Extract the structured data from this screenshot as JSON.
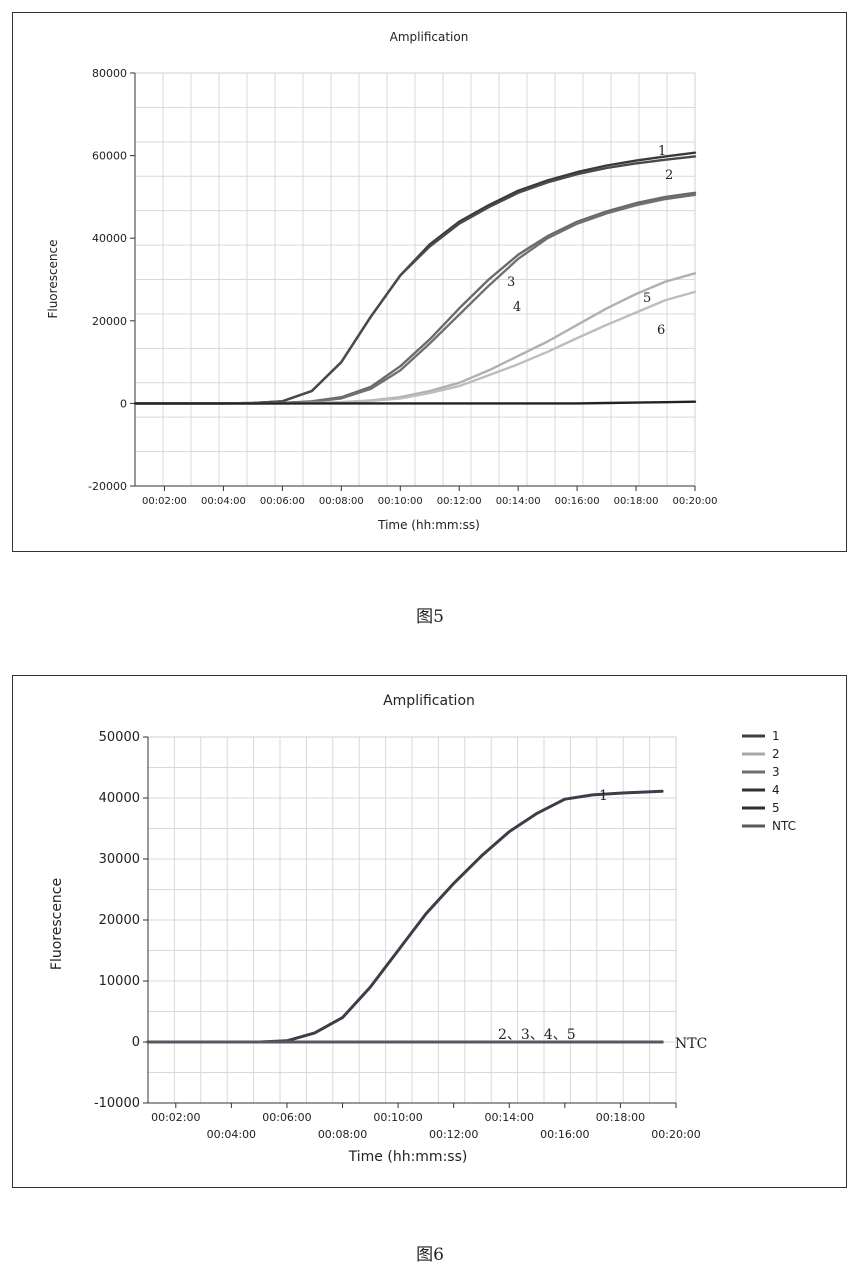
{
  "figures": [
    {
      "caption": "图5",
      "chart_data": {
        "type": "line",
        "title": "Amplification",
        "xlabel": "Time (hh:mm:ss)",
        "ylabel": "Fluorescence",
        "xlim_seconds": [
          60,
          1200
        ],
        "ylim": [
          -20000,
          80000
        ],
        "x_tick_labels": [
          "00:02:00",
          "00:04:00",
          "00:06:00",
          "00:08:00",
          "00:10:00",
          "00:12:00",
          "00:14:00",
          "00:16:00",
          "00:18:00",
          "00:20:00"
        ],
        "y_tick_labels": [
          "80000",
          "60000",
          "40000",
          "20000",
          "0",
          "-20000"
        ],
        "grid": true,
        "legend": "none",
        "x_seconds": [
          60,
          120,
          180,
          240,
          300,
          360,
          420,
          480,
          540,
          600,
          660,
          720,
          780,
          840,
          900,
          960,
          1020,
          1080,
          1140,
          1200
        ],
        "series": [
          {
            "annotation": "1",
            "color": "#3a3a3a",
            "values": [
              0,
              0,
              0,
              0,
              100,
              500,
              3000,
              10000,
              21000,
              31000,
              38500,
              44000,
              48000,
              51500,
              54000,
              56000,
              57600,
              58800,
              59800,
              60700
            ]
          },
          {
            "annotation": "2",
            "color": "#4a4a4a",
            "values": [
              0,
              0,
              0,
              0,
              100,
              500,
              3000,
              10000,
              21000,
              31000,
              38000,
              43500,
              47500,
              51000,
              53500,
              55500,
              57000,
              58100,
              59000,
              59800
            ]
          },
          {
            "annotation": "3",
            "color": "#6a6a6a",
            "values": [
              0,
              0,
              0,
              0,
              0,
              100,
              500,
              1500,
              4000,
              9000,
              15500,
              23000,
              30000,
              36000,
              40500,
              44000,
              46500,
              48500,
              50000,
              51000
            ]
          },
          {
            "annotation": "4",
            "color": "#707070",
            "values": [
              0,
              0,
              0,
              0,
              0,
              100,
              400,
              1200,
              3500,
              8000,
              14500,
              21500,
              28500,
              35000,
              40000,
              43500,
              46000,
              48000,
              49500,
              50500
            ]
          },
          {
            "annotation": "5",
            "color": "#b0b0b0",
            "values": [
              0,
              0,
              0,
              0,
              0,
              0,
              100,
              300,
              700,
              1500,
              3000,
              5000,
              8000,
              11500,
              15000,
              19000,
              23000,
              26500,
              29500,
              31500
            ]
          },
          {
            "annotation": "6",
            "color": "#bdbdbd",
            "values": [
              0,
              0,
              0,
              0,
              0,
              0,
              100,
              300,
              600,
              1200,
              2500,
              4200,
              6800,
              9500,
              12500,
              15800,
              19000,
              22000,
              25000,
              27000
            ]
          },
          {
            "annotation": "",
            "color": "#222222",
            "values": [
              0,
              0,
              0,
              0,
              0,
              0,
              0,
              0,
              0,
              0,
              0,
              0,
              0,
              0,
              0,
              0,
              100,
              200,
              300,
              400
            ]
          }
        ]
      }
    },
    {
      "caption": "图6",
      "chart_data": {
        "type": "line",
        "title": "Amplification",
        "xlabel": "Time (hh:mm:ss)",
        "ylabel": "Fluorescence",
        "xlim_seconds": [
          60,
          1200
        ],
        "ylim": [
          -10000,
          50000
        ],
        "x_tick_labels": [
          "00:02:00",
          "00:04:00",
          "00:06:00",
          "00:08:00",
          "00:10:00",
          "00:12:00",
          "00:14:00",
          "00:16:00",
          "00:18:00",
          "00:20:00"
        ],
        "y_tick_labels": [
          "50000",
          "40000",
          "30000",
          "20000",
          "10000",
          "0",
          "-10000"
        ],
        "grid": true,
        "legend": "right",
        "legend_entries": [
          {
            "label": "1",
            "color": "#3a3f47"
          },
          {
            "label": "2",
            "color": "#a8a8a8"
          },
          {
            "label": "3",
            "color": "#6e6e6e"
          },
          {
            "label": "4",
            "color": "#2d3238"
          },
          {
            "label": "5",
            "color": "#2a2f36"
          },
          {
            "label": "NTC",
            "color": "#55595f"
          }
        ],
        "annotations": [
          "1",
          "2、3、4、5",
          "NTC"
        ],
        "x_seconds": [
          60,
          120,
          180,
          240,
          300,
          360,
          420,
          480,
          540,
          600,
          660,
          720,
          780,
          840,
          900,
          960,
          1020,
          1080,
          1140,
          1170
        ],
        "series": [
          {
            "name": "1",
            "color": "#3a3f47",
            "values": [
              0,
              0,
              0,
              0,
              0,
              200,
              1500,
              4000,
              9000,
              15000,
              21000,
              26000,
              30500,
              34500,
              37500,
              39800,
              40500,
              40800,
              41000,
              41100
            ]
          },
          {
            "name": "2",
            "color": "#a8a8a8",
            "values": [
              0,
              0,
              0,
              0,
              0,
              0,
              0,
              0,
              0,
              0,
              0,
              0,
              0,
              0,
              0,
              0,
              0,
              0,
              0,
              0
            ]
          },
          {
            "name": "3",
            "color": "#6e6e6e",
            "values": [
              0,
              0,
              0,
              0,
              0,
              0,
              0,
              0,
              0,
              0,
              0,
              0,
              0,
              0,
              0,
              0,
              0,
              0,
              0,
              0
            ]
          },
          {
            "name": "4",
            "color": "#2d3238",
            "values": [
              0,
              0,
              0,
              0,
              0,
              0,
              0,
              0,
              0,
              0,
              0,
              0,
              0,
              0,
              0,
              0,
              0,
              0,
              0,
              0
            ]
          },
          {
            "name": "5",
            "color": "#2a2f36",
            "values": [
              0,
              0,
              0,
              0,
              0,
              0,
              0,
              0,
              0,
              0,
              0,
              0,
              0,
              0,
              0,
              0,
              0,
              0,
              0,
              0
            ]
          },
          {
            "name": "NTC",
            "color": "#55595f",
            "values": [
              0,
              0,
              0,
              0,
              0,
              0,
              0,
              0,
              0,
              0,
              0,
              0,
              0,
              0,
              0,
              0,
              0,
              0,
              0,
              0
            ]
          }
        ]
      }
    }
  ]
}
